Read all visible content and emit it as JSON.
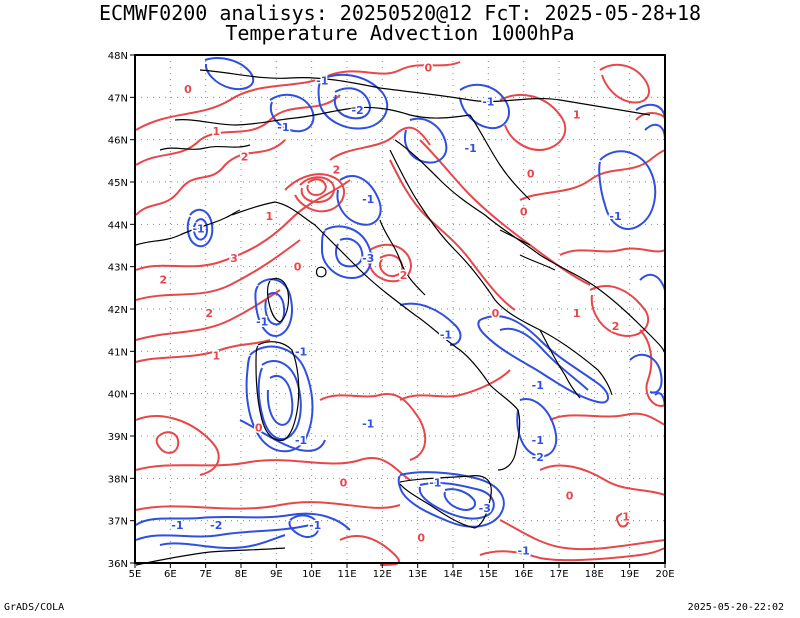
{
  "title": {
    "line1": "ECMWF0200 analisys: 20250520@12 FcT: 2025-05-28+18",
    "line2": "Temperature Advection 1000hPa"
  },
  "axes": {
    "lat_ticks": [
      "48N",
      "47N",
      "46N",
      "45N",
      "44N",
      "43N",
      "42N",
      "41N",
      "40N",
      "39N",
      "38N",
      "37N",
      "36N"
    ],
    "lon_ticks": [
      "5E",
      "6E",
      "7E",
      "8E",
      "9E",
      "10E",
      "11E",
      "12E",
      "13E",
      "14E",
      "15E",
      "16E",
      "17E",
      "18E",
      "19E",
      "20E"
    ],
    "lat_range": [
      36,
      48
    ],
    "lon_range": [
      5,
      20
    ]
  },
  "contours": {
    "warm_color": "#e8474a",
    "cold_color": "#2f4fe0",
    "coast_color": "#000000",
    "grid_color": "#8a8a8a"
  },
  "contour_labels": [
    {
      "text": "0",
      "lon": 6.5,
      "lat": 47.2,
      "kind": "warm"
    },
    {
      "text": "1",
      "lon": 7.3,
      "lat": 46.2,
      "kind": "warm"
    },
    {
      "text": "2",
      "lon": 8.1,
      "lat": 45.6,
      "kind": "warm"
    },
    {
      "text": "-1",
      "lon": 9.2,
      "lat": 46.3,
      "kind": "cold"
    },
    {
      "text": "-1",
      "lon": 10.3,
      "lat": 47.4,
      "kind": "cold"
    },
    {
      "text": "-2",
      "lon": 11.3,
      "lat": 46.7,
      "kind": "cold"
    },
    {
      "text": "0",
      "lon": 13.3,
      "lat": 47.7,
      "kind": "warm"
    },
    {
      "text": "-1",
      "lon": 15.0,
      "lat": 46.9,
      "kind": "cold"
    },
    {
      "text": "1",
      "lon": 17.5,
      "lat": 46.6,
      "kind": "warm"
    },
    {
      "text": "0",
      "lon": 16.2,
      "lat": 45.2,
      "kind": "warm"
    },
    {
      "text": "-1",
      "lon": 14.5,
      "lat": 45.8,
      "kind": "cold"
    },
    {
      "text": "2",
      "lon": 10.7,
      "lat": 45.3,
      "kind": "warm"
    },
    {
      "text": "-1",
      "lon": 11.6,
      "lat": 44.6,
      "kind": "cold"
    },
    {
      "text": "1",
      "lon": 8.8,
      "lat": 44.2,
      "kind": "warm"
    },
    {
      "text": "-1",
      "lon": 6.8,
      "lat": 43.9,
      "kind": "cold"
    },
    {
      "text": "0",
      "lon": 16.0,
      "lat": 44.3,
      "kind": "warm"
    },
    {
      "text": "-1",
      "lon": 18.6,
      "lat": 44.2,
      "kind": "cold"
    },
    {
      "text": "3",
      "lon": 7.8,
      "lat": 43.2,
      "kind": "warm"
    },
    {
      "text": "2",
      "lon": 5.8,
      "lat": 42.7,
      "kind": "warm"
    },
    {
      "text": "-3",
      "lon": 11.6,
      "lat": 43.2,
      "kind": "cold"
    },
    {
      "text": "2",
      "lon": 12.6,
      "lat": 42.8,
      "kind": "warm"
    },
    {
      "text": "0",
      "lon": 9.6,
      "lat": 43.0,
      "kind": "warm"
    },
    {
      "text": "-1",
      "lon": 8.6,
      "lat": 41.7,
      "kind": "cold"
    },
    {
      "text": "2",
      "lon": 7.1,
      "lat": 41.9,
      "kind": "warm"
    },
    {
      "text": "-1",
      "lon": 13.8,
      "lat": 41.4,
      "kind": "cold"
    },
    {
      "text": "0",
      "lon": 15.2,
      "lat": 41.9,
      "kind": "warm"
    },
    {
      "text": "1",
      "lon": 17.5,
      "lat": 41.9,
      "kind": "warm"
    },
    {
      "text": "2",
      "lon": 18.6,
      "lat": 41.6,
      "kind": "warm"
    },
    {
      "text": "1",
      "lon": 7.3,
      "lat": 40.9,
      "kind": "warm"
    },
    {
      "text": "-1",
      "lon": 9.7,
      "lat": 41.0,
      "kind": "cold"
    },
    {
      "text": "-1",
      "lon": 16.4,
      "lat": 40.2,
      "kind": "cold"
    },
    {
      "text": "-1",
      "lon": 11.6,
      "lat": 39.3,
      "kind": "cold"
    },
    {
      "text": "0",
      "lon": 8.5,
      "lat": 39.2,
      "kind": "warm"
    },
    {
      "text": "-1",
      "lon": 9.7,
      "lat": 38.9,
      "kind": "cold"
    },
    {
      "text": "-1",
      "lon": 16.4,
      "lat": 38.9,
      "kind": "cold"
    },
    {
      "text": "-2",
      "lon": 16.4,
      "lat": 38.5,
      "kind": "cold"
    },
    {
      "text": "0",
      "lon": 10.9,
      "lat": 37.9,
      "kind": "warm"
    },
    {
      "text": "-1",
      "lon": 13.5,
      "lat": 37.9,
      "kind": "cold"
    },
    {
      "text": "-3",
      "lon": 14.9,
      "lat": 37.3,
      "kind": "cold"
    },
    {
      "text": "0",
      "lon": 17.3,
      "lat": 37.6,
      "kind": "warm"
    },
    {
      "text": "1",
      "lon": 18.9,
      "lat": 37.1,
      "kind": "warm"
    },
    {
      "text": "-1",
      "lon": 6.2,
      "lat": 36.9,
      "kind": "cold"
    },
    {
      "text": "-2",
      "lon": 7.3,
      "lat": 36.9,
      "kind": "cold"
    },
    {
      "text": "-1",
      "lon": 10.1,
      "lat": 36.9,
      "kind": "cold"
    },
    {
      "text": "0",
      "lon": 13.1,
      "lat": 36.6,
      "kind": "warm"
    },
    {
      "text": "-1",
      "lon": 16.0,
      "lat": 36.3,
      "kind": "cold"
    }
  ],
  "footer": {
    "left": "GrADS/COLA",
    "right": "2025-05-20-22:02"
  }
}
